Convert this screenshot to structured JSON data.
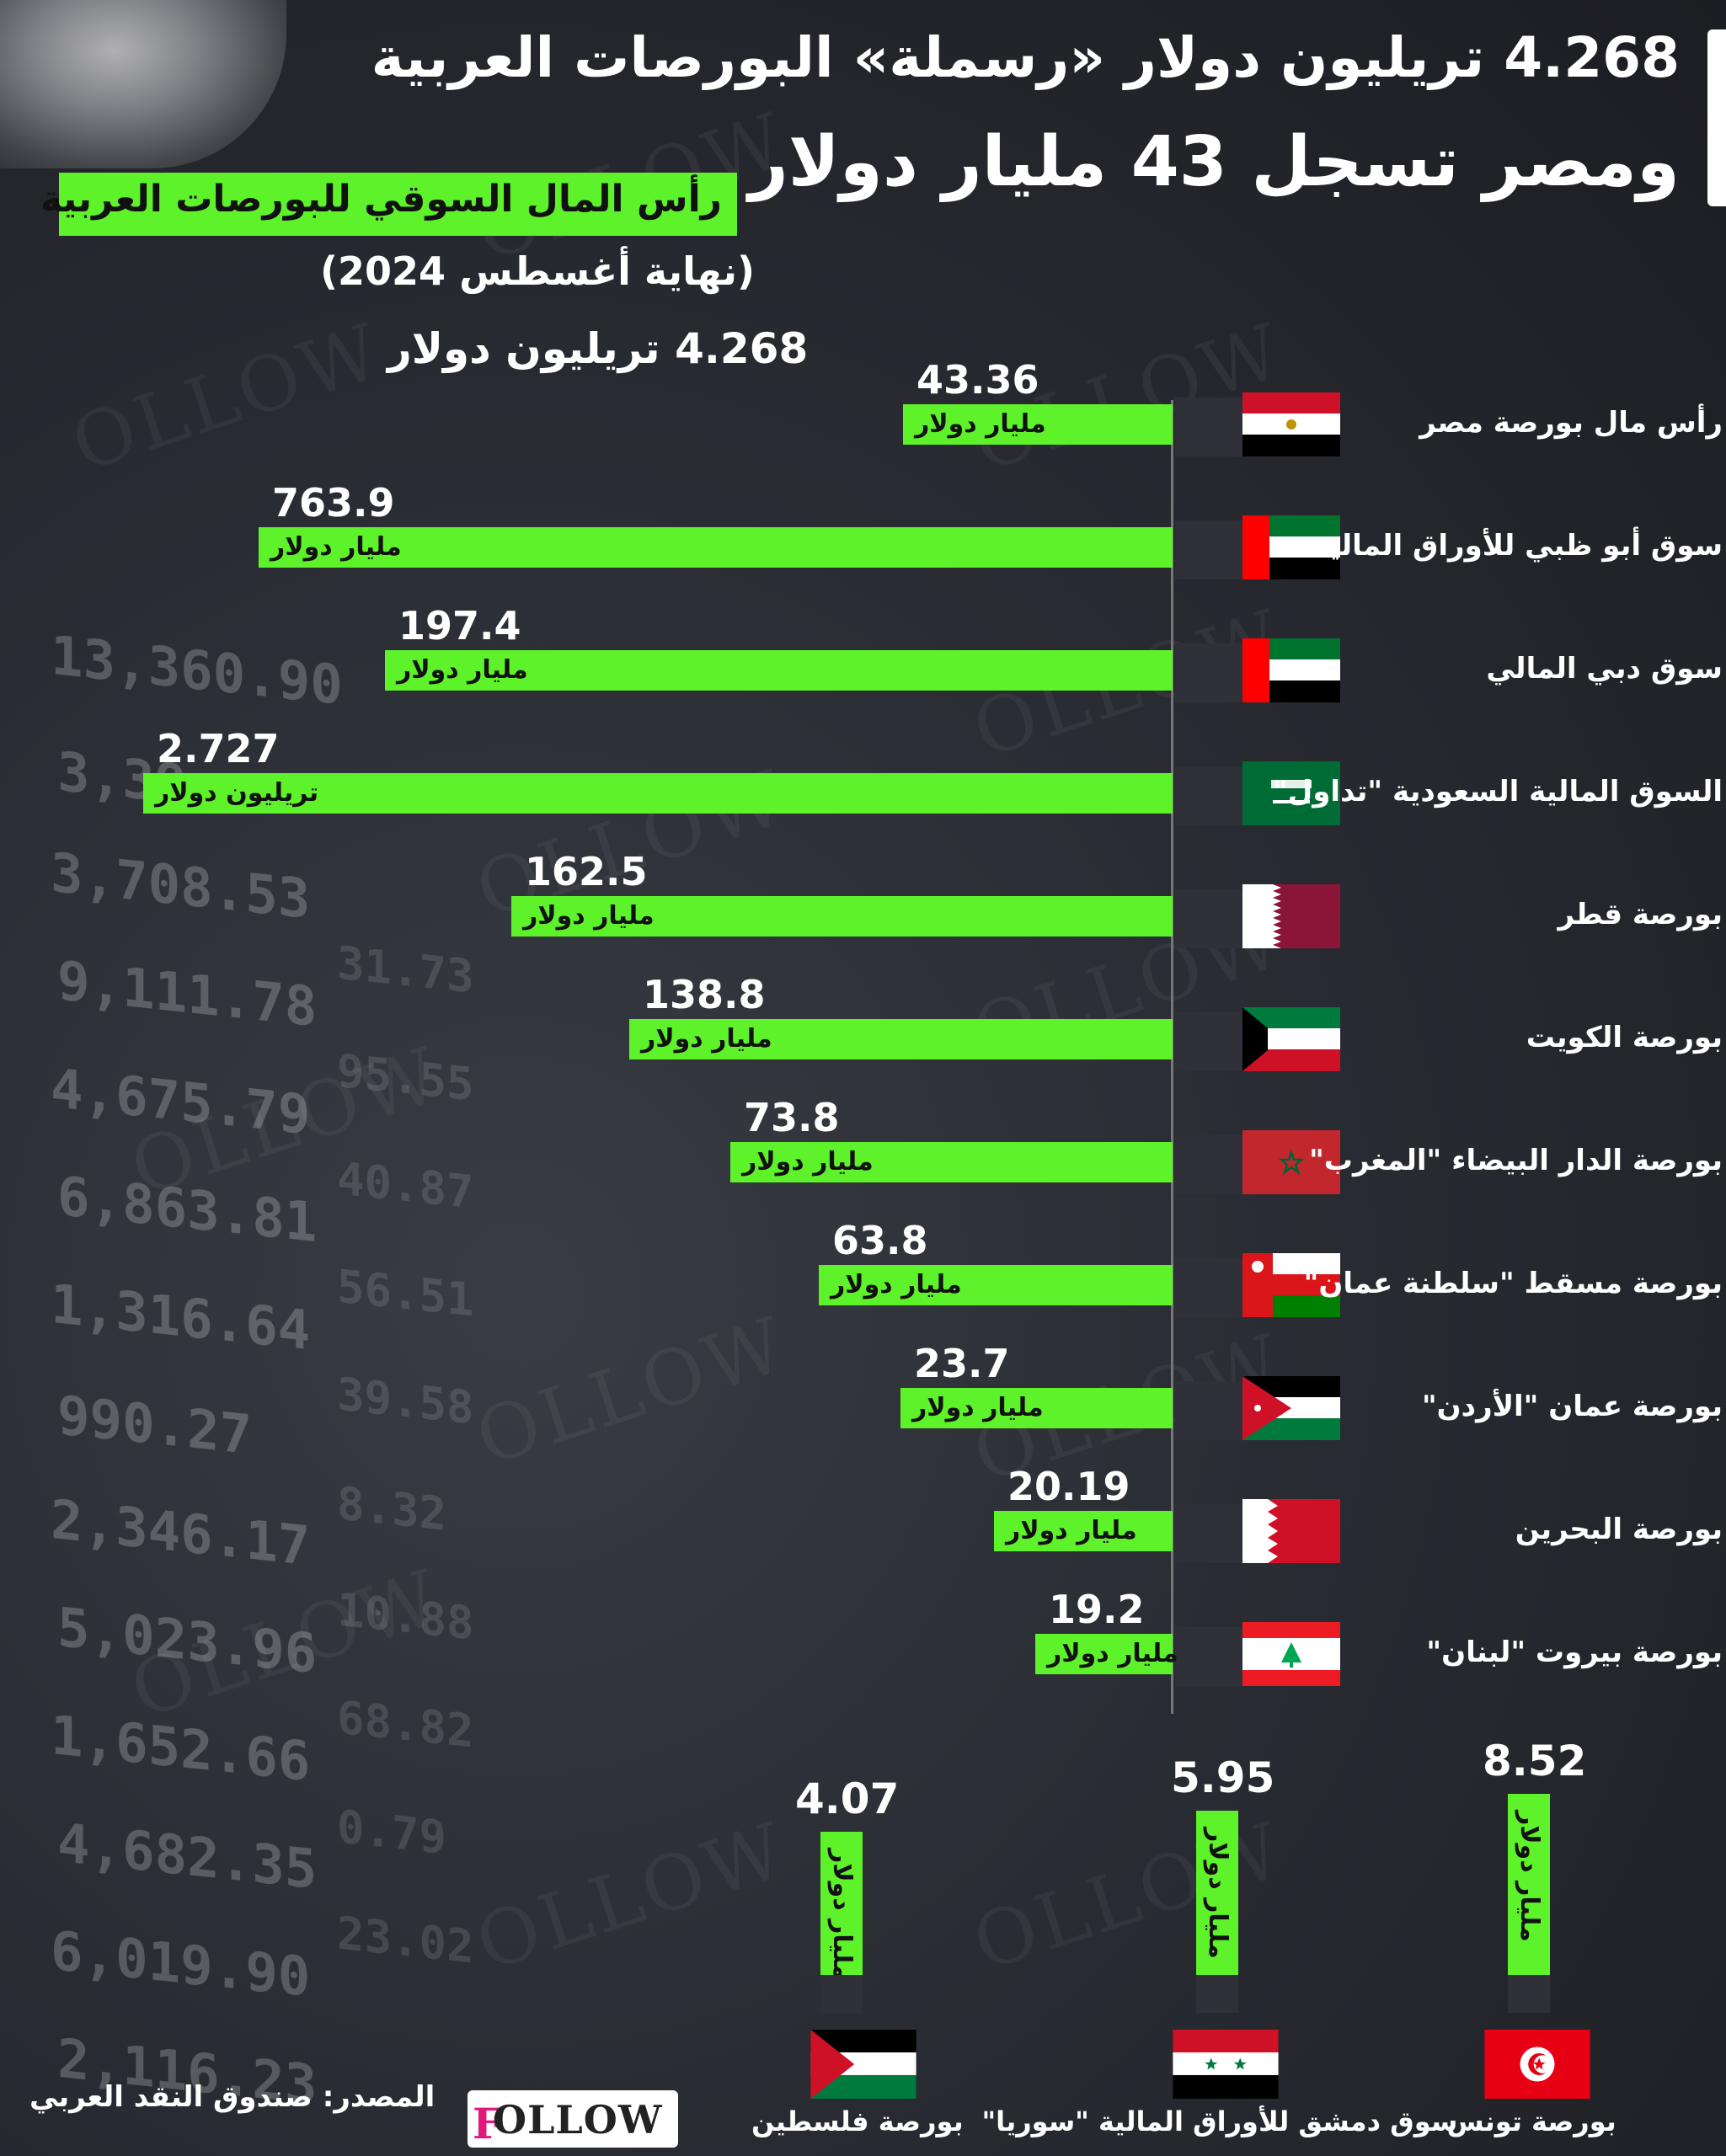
{
  "header": {
    "title_line1": "4.268 تريليون دولار «رسملة» البورصات العربية",
    "title_line2": "ومصر تسجل 43 مليار دولار"
  },
  "legend": {
    "subtitle": "رأس المال السوقي للبورصات العربية",
    "period": "(نهاية أغسطس 2024)",
    "total": "4.268 تريليون دولار"
  },
  "background": {
    "ticker_values": [
      "13,360.90",
      "3,39",
      "3,708.53",
      "9,111.78",
      "4,675.79",
      "6,863.81",
      "1,316.64",
      "990.27",
      "2,346.17",
      "5,023.96",
      "1,652.66",
      "4,682.35",
      "6,019.90",
      "2,116.23"
    ],
    "ticker_small": [
      "31.73",
      "95.55",
      "40.87",
      "56.51",
      "39.58",
      "8.32",
      "10.88",
      "68.82",
      "0.79",
      "23.02"
    ]
  },
  "chart_data": {
    "type": "bar",
    "orientation": "horizontal + vertical",
    "note_units": "billion USD unless marked trillion",
    "rows": [
      {
        "label": "رأس مال بورصة مصر",
        "value": 43.36,
        "display": "43.36",
        "unit": "مليار دولار",
        "flag": "egypt"
      },
      {
        "label": "سوق أبو ظبي للأوراق المالية",
        "value": 763.9,
        "display": "763.9",
        "unit": "مليار دولار",
        "flag": "uae"
      },
      {
        "label": "سوق دبي المالي",
        "value": 197.4,
        "display": "197.4",
        "unit": "مليار دولار",
        "flag": "uae"
      },
      {
        "label": "السوق المالية السعودية \"تداول\"",
        "value": 2727,
        "display": "2.727",
        "unit": "تريليون دولار",
        "flag": "saudi"
      },
      {
        "label": "بورصة قطر",
        "value": 162.5,
        "display": "162.5",
        "unit": "مليار دولار",
        "flag": "qatar"
      },
      {
        "label": "بورصة الكويت",
        "value": 138.8,
        "display": "138.8",
        "unit": "مليار دولار",
        "flag": "kuwait"
      },
      {
        "label": "بورصة الدار البيضاء \"المغرب\"",
        "value": 73.8,
        "display": "73.8",
        "unit": "مليار دولار",
        "flag": "morocco"
      },
      {
        "label": "بورصة مسقط \"سلطنة عمان\"",
        "value": 63.8,
        "display": "63.8",
        "unit": "مليار دولار",
        "flag": "oman"
      },
      {
        "label": "بورصة عمان \"الأردن\"",
        "value": 23.7,
        "display": "23.7",
        "unit": "مليار دولار",
        "flag": "jordan"
      },
      {
        "label": "بورصة البحرين",
        "value": 20.19,
        "display": "20.19",
        "unit": "مليار دولار",
        "flag": "bahrain"
      },
      {
        "label": "بورصة بيروت \"لبنان\"",
        "value": 19.2,
        "display": "19.2",
        "unit": "مليار دولار",
        "flag": "lebanon"
      }
    ],
    "columns": [
      {
        "label": "بورصة تونس",
        "value": 8.52,
        "display": "8.52",
        "unit": "مليار دولار",
        "flag": "tunisia"
      },
      {
        "label": "سوق دمشق للأوراق المالية \"سوريا\"",
        "value": 5.95,
        "display": "5.95",
        "unit": "مليار دولار",
        "flag": "syria"
      },
      {
        "label": "بورصة فلسطين",
        "value": 4.07,
        "display": "4.07",
        "unit": "مليار دولار",
        "flag": "palestine"
      }
    ],
    "colors": {
      "bar": "#5ef22a",
      "background": "#2a2c33"
    }
  },
  "footer": {
    "source": "المصدر: صندوق النقد العربي",
    "logo": "OLLOW",
    "logo_mark": "F"
  }
}
